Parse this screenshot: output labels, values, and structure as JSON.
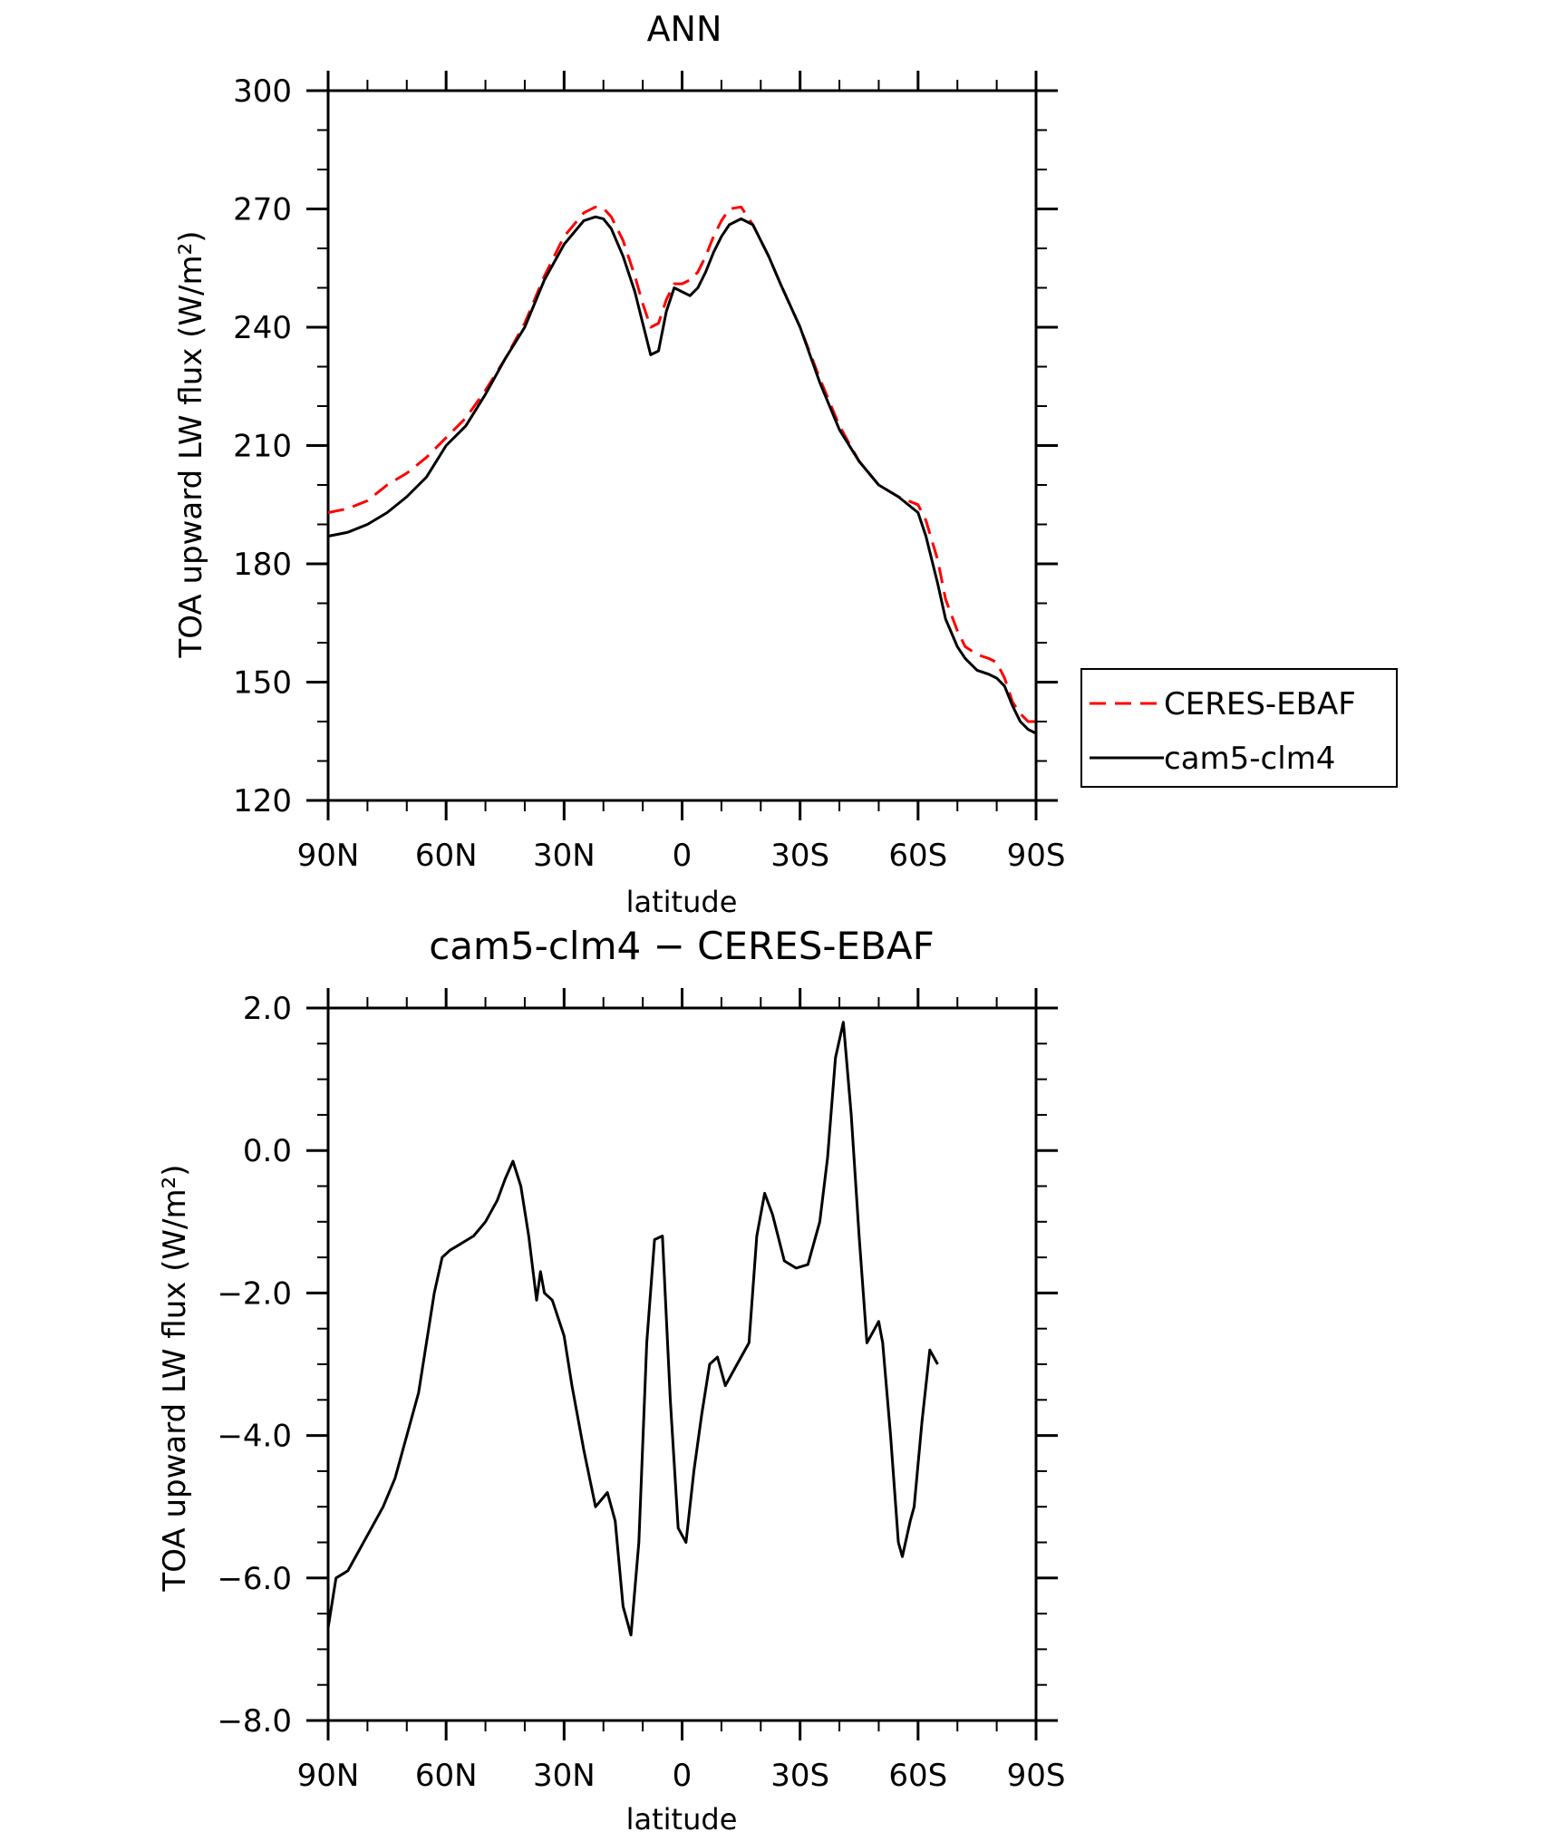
{
  "chart_data": [
    {
      "type": "line",
      "title": "ANN",
      "xlabel": "latitude",
      "ylabel": "TOA upward LW flux (W/m²)",
      "ylim": [
        120,
        300
      ],
      "xlim": [
        90,
        -90
      ],
      "xticks": [
        90,
        60,
        30,
        0,
        -30,
        -60,
        -90
      ],
      "xtick_labels": [
        "90N",
        "60N",
        "30N",
        "0",
        "30S",
        "60S",
        "90S"
      ],
      "yticks": [
        120,
        150,
        180,
        210,
        240,
        270,
        300
      ],
      "ytick_labels": [
        "120",
        "150",
        "180",
        "210",
        "240",
        "270",
        "300"
      ],
      "legend": "right",
      "x": [
        90,
        85,
        80,
        75,
        70,
        65,
        60,
        55,
        50,
        45,
        40,
        35,
        30,
        25,
        22,
        20,
        18,
        15,
        12,
        10,
        8,
        6,
        4,
        2,
        0,
        -2,
        -4,
        -6,
        -8,
        -10,
        -12,
        -15,
        -18,
        -20,
        -22,
        -25,
        -30,
        -35,
        -40,
        -45,
        -50,
        -55,
        -60,
        -62,
        -65,
        -67,
        -70,
        -72,
        -75,
        -78,
        -80,
        -82,
        -84,
        -86,
        -88,
        -90
      ],
      "series": [
        {
          "name": "CERES-EBAF",
          "color": "#ff0000",
          "dash": "dashed",
          "values": [
            193,
            194,
            196,
            200,
            203,
            207,
            212,
            217,
            224,
            232,
            241,
            253,
            263,
            269,
            270.5,
            270.2,
            268,
            262,
            253,
            246,
            240,
            241,
            247,
            251,
            251,
            252,
            254,
            258,
            263,
            267,
            270,
            270.5,
            266,
            262,
            258,
            251,
            240,
            227,
            215,
            206,
            200,
            197,
            195,
            191,
            181,
            171,
            163,
            159,
            157,
            156,
            155,
            151,
            145,
            142,
            140,
            140
          ]
        },
        {
          "name": "cam5-clm4",
          "color": "#000000",
          "dash": "solid",
          "values": [
            187,
            188,
            190,
            193,
            197,
            202,
            210,
            215,
            223,
            232,
            240,
            252,
            261,
            267,
            268,
            267.5,
            265,
            258,
            249,
            241,
            233,
            234,
            244,
            250,
            249,
            248,
            250,
            254,
            259,
            263,
            266,
            267.5,
            266,
            262,
            258,
            251,
            240,
            226,
            214,
            206,
            200,
            197,
            193,
            187,
            175,
            166,
            159,
            156,
            153,
            152,
            151,
            149,
            144,
            140,
            138,
            137
          ]
        }
      ]
    },
    {
      "type": "line",
      "title": "cam5-clm4 − CERES-EBAF",
      "xlabel": "latitude",
      "ylabel": "TOA upward LW flux (W/m²)",
      "ylim": [
        -8,
        2
      ],
      "xlim": [
        90,
        -90
      ],
      "xticks": [
        90,
        60,
        30,
        0,
        -30,
        -60,
        -90
      ],
      "xtick_labels": [
        "90N",
        "60N",
        "30N",
        "0",
        "30S",
        "60S",
        "90S"
      ],
      "yticks": [
        -8,
        -6,
        -4,
        -2,
        0,
        2
      ],
      "ytick_labels": [
        "−8.0",
        "−6.0",
        "−4.0",
        "−2.0",
        "0.0",
        "2.0"
      ],
      "series": [
        {
          "color": "#000000",
          "values": [
            -6.7,
            -6.0,
            -5.9,
            -5.6,
            -5.3,
            -5.0,
            -4.6,
            -4.0,
            -3.4,
            -2.0,
            -1.5,
            -1.4,
            -1.3,
            -1.2,
            -1.0,
            -0.7,
            -0.4,
            -0.15,
            -0.5,
            -1.2,
            -2.1,
            -1.7,
            -2.0,
            -2.1,
            -2.6,
            -3.3,
            -4.2,
            -5.0,
            -4.8,
            -5.2,
            -6.4,
            -6.8,
            -5.5,
            -2.7,
            -1.25,
            -1.2,
            -3.5,
            -5.3,
            -5.5,
            -4.5,
            -3.7,
            -3.0,
            -2.9,
            -3.3,
            -3.0,
            -2.7,
            -1.2,
            -0.6,
            -0.9,
            -1.55,
            -1.65,
            -1.6,
            -1.0,
            -0.1,
            1.3,
            1.8,
            0.5,
            -1.2,
            -2.7,
            -2.5,
            -2.4,
            -2.7,
            -4.0,
            -5.5,
            -5.7,
            -5.2,
            -5.0,
            -3.8,
            -2.8,
            -3.0
          ],
          "x": [
            90,
            88,
            85,
            82,
            79,
            76,
            73,
            70,
            67,
            63,
            61,
            59,
            56,
            53,
            50,
            47,
            45,
            43,
            41,
            39,
            37,
            36,
            35,
            33,
            30,
            28,
            25,
            22,
            19,
            17,
            15,
            13,
            11,
            9,
            7,
            5,
            3,
            1,
            -1,
            -3,
            -5,
            -7,
            -9,
            -11,
            -14,
            -17,
            -19,
            -21,
            -23,
            -26,
            -29,
            -32,
            -35,
            -37,
            -39,
            -41,
            -43,
            -45,
            -47,
            -49,
            -50,
            -51,
            -53,
            -55,
            -56,
            -58,
            -59,
            -61,
            -63,
            -65
          ]
        }
      ]
    }
  ],
  "legend": {
    "entries": [
      "CERES-EBAF",
      "cam5-clm4"
    ]
  }
}
